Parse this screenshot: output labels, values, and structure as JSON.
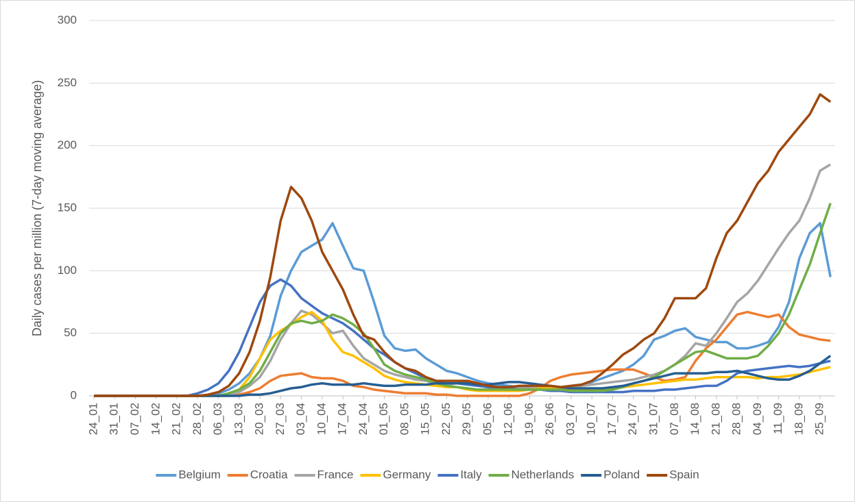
{
  "chart_data": {
    "type": "line",
    "y_label": "Daily cases per million (7-day moving average)",
    "categories": [
      "24_01",
      null,
      "31_01",
      null,
      "07_02",
      null,
      "14_02",
      null,
      "21_02",
      null,
      "28_02",
      null,
      "06_03",
      null,
      "13_03",
      null,
      "20_03",
      null,
      "27_03",
      null,
      "03_04",
      null,
      "10_04",
      null,
      "17_04",
      null,
      "24_04",
      null,
      "01_05",
      null,
      "08_05",
      null,
      "15_05",
      null,
      "22_05",
      null,
      "29_05",
      null,
      "05_06",
      null,
      "12_06",
      null,
      "19_06",
      null,
      "26_06",
      null,
      "03_07",
      null,
      "10_07",
      null,
      "17_07",
      null,
      "24_07",
      null,
      "31_07",
      null,
      "07_08",
      null,
      "14_08",
      null,
      "21_08",
      null,
      "28_08",
      null,
      "04_09",
      null,
      "11_09",
      null,
      "18_09",
      null,
      "25_09",
      null
    ],
    "ylim": [
      0,
      300
    ],
    "yticks": [
      0,
      50,
      100,
      150,
      200,
      250,
      300
    ],
    "grid": true,
    "legend": "bottom",
    "series": [
      {
        "name": "Belgium",
        "color": "#5b9bd5",
        "values": [
          0,
          0,
          0,
          0,
          0,
          0,
          0,
          0,
          0,
          0,
          0,
          0,
          2,
          5,
          10,
          18,
          30,
          48,
          80,
          100,
          115,
          120,
          125,
          138,
          120,
          102,
          100,
          75,
          48,
          38,
          36,
          37,
          30,
          25,
          20,
          18,
          15,
          12,
          10,
          9,
          8,
          7,
          6,
          6,
          7,
          7,
          8,
          9,
          11,
          14,
          17,
          20,
          25,
          32,
          45,
          48,
          52,
          54,
          47,
          45,
          43,
          43,
          38,
          38,
          40,
          43,
          55,
          75,
          110,
          130,
          138,
          95
        ]
      },
      {
        "name": "Croatia",
        "color": "#ed7d31",
        "values": [
          0,
          0,
          0,
          0,
          0,
          0,
          0,
          0,
          0,
          0,
          0,
          0,
          0,
          0,
          1,
          3,
          6,
          12,
          16,
          17,
          18,
          15,
          14,
          14,
          12,
          8,
          7,
          5,
          4,
          3,
          2,
          2,
          2,
          1,
          1,
          0,
          0,
          0,
          0,
          0,
          0,
          0,
          2,
          6,
          12,
          15,
          17,
          18,
          19,
          20,
          21,
          21,
          21,
          18,
          15,
          12,
          13,
          15,
          28,
          38,
          45,
          55,
          65,
          67,
          65,
          63,
          65,
          55,
          49,
          47,
          45,
          44
        ]
      },
      {
        "name": "France",
        "color": "#a5a5a5",
        "values": [
          0,
          0,
          0,
          0,
          0,
          0,
          0,
          0,
          0,
          0,
          0,
          0,
          0,
          1,
          3,
          8,
          15,
          28,
          45,
          58,
          68,
          65,
          58,
          50,
          52,
          40,
          30,
          25,
          20,
          17,
          15,
          13,
          12,
          10,
          9,
          10,
          12,
          10,
          8,
          7,
          6,
          6,
          6,
          6,
          6,
          6,
          7,
          8,
          9,
          10,
          11,
          12,
          13,
          15,
          17,
          20,
          25,
          32,
          42,
          40,
          50,
          62,
          75,
          82,
          92,
          105,
          118,
          130,
          140,
          158,
          180,
          185
        ]
      },
      {
        "name": "Germany",
        "color": "#ffc000",
        "values": [
          0,
          0,
          0,
          0,
          0,
          0,
          0,
          0,
          0,
          0,
          0,
          0,
          0,
          2,
          5,
          15,
          30,
          45,
          52,
          57,
          63,
          67,
          60,
          45,
          35,
          32,
          27,
          22,
          16,
          13,
          11,
          10,
          9,
          8,
          7,
          7,
          5,
          4,
          4,
          4,
          4,
          4,
          5,
          6,
          6,
          5,
          5,
          5,
          5,
          5,
          6,
          7,
          8,
          9,
          10,
          11,
          12,
          13,
          13,
          14,
          15,
          15,
          15,
          15,
          14,
          15,
          15,
          16,
          17,
          19,
          21,
          23
        ]
      },
      {
        "name": "Italy",
        "color": "#4472c4",
        "values": [
          0,
          0,
          0,
          0,
          0,
          0,
          0,
          0,
          0,
          0,
          2,
          5,
          10,
          20,
          35,
          55,
          75,
          88,
          93,
          88,
          78,
          72,
          66,
          62,
          58,
          52,
          45,
          38,
          33,
          27,
          22,
          18,
          14,
          11,
          10,
          10,
          9,
          8,
          7,
          6,
          6,
          5,
          5,
          5,
          4,
          4,
          3,
          3,
          3,
          3,
          3,
          3,
          4,
          4,
          4,
          5,
          5,
          6,
          7,
          8,
          8,
          12,
          18,
          20,
          21,
          22,
          23,
          24,
          23,
          24,
          26,
          28
        ]
      },
      {
        "name": "Netherlands",
        "color": "#70ad47",
        "values": [
          0,
          0,
          0,
          0,
          0,
          0,
          0,
          0,
          0,
          0,
          0,
          0,
          0,
          2,
          5,
          10,
          20,
          35,
          50,
          58,
          60,
          58,
          60,
          65,
          62,
          57,
          50,
          38,
          25,
          20,
          17,
          15,
          13,
          10,
          8,
          7,
          6,
          5,
          5,
          5,
          5,
          5,
          5,
          5,
          5,
          5,
          4,
          4,
          4,
          4,
          5,
          7,
          10,
          12,
          15,
          20,
          25,
          30,
          35,
          36,
          33,
          30,
          30,
          30,
          32,
          40,
          50,
          65,
          85,
          105,
          130,
          154
        ]
      },
      {
        "name": "Poland",
        "color": "#255e91",
        "values": [
          0,
          0,
          0,
          0,
          0,
          0,
          0,
          0,
          0,
          0,
          0,
          0,
          0,
          0,
          0,
          1,
          1,
          2,
          4,
          6,
          7,
          9,
          10,
          9,
          9,
          9,
          10,
          9,
          8,
          8,
          9,
          9,
          9,
          10,
          10,
          10,
          10,
          9,
          9,
          10,
          11,
          11,
          10,
          9,
          8,
          7,
          6,
          6,
          6,
          6,
          7,
          8,
          10,
          12,
          14,
          16,
          18,
          18,
          18,
          18,
          19,
          19,
          20,
          18,
          16,
          14,
          13,
          13,
          16,
          20,
          26,
          32
        ]
      },
      {
        "name": "Spain",
        "color": "#9e480e",
        "values": [
          0,
          0,
          0,
          0,
          0,
          0,
          0,
          0,
          0,
          0,
          0,
          1,
          3,
          8,
          18,
          35,
          60,
          95,
          140,
          167,
          158,
          140,
          115,
          100,
          85,
          65,
          48,
          45,
          35,
          27,
          22,
          20,
          15,
          12,
          12,
          12,
          12,
          10,
          8,
          7,
          7,
          8,
          8,
          8,
          8,
          7,
          8,
          9,
          12,
          18,
          25,
          33,
          38,
          45,
          50,
          62,
          78,
          78,
          78,
          86,
          110,
          130,
          140,
          155,
          170,
          180,
          195,
          205,
          215,
          225,
          241,
          235
        ]
      }
    ]
  }
}
